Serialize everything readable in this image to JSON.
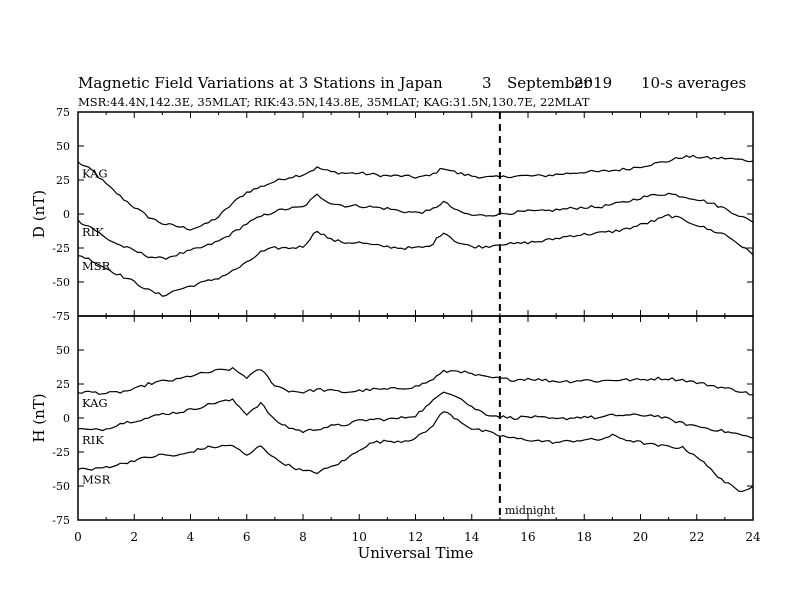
{
  "header": {
    "title": "Magnetic Field Variations at 3 Stations in Japan",
    "day": "3",
    "month": "September",
    "year": "2019",
    "averaging": "10-s averages",
    "stations_line": "MSR:44.4N,142.3E, 35MLAT;  RIK:43.5N,143.8E, 35MLAT;  KAG:31.5N,130.7E, 22MLAT"
  },
  "chart_data": [
    {
      "type": "line",
      "ylabel": "D (nT)",
      "xlim": [
        0,
        24
      ],
      "ylim": [
        -75,
        75
      ],
      "yticks": [
        "75",
        "50",
        "25",
        "0",
        "-25",
        "-50",
        "-75"
      ],
      "series": [
        {
          "name": "KAG",
          "x": [
            0,
            0.5,
            1,
            1.5,
            2,
            2.5,
            3,
            3.5,
            4,
            4.5,
            5,
            5.5,
            6,
            6.5,
            7,
            7.5,
            8,
            8.5,
            9,
            9.5,
            10,
            10.5,
            11,
            11.5,
            12,
            12.5,
            13,
            13.5,
            14,
            14.5,
            15,
            15.5,
            16,
            16.5,
            17,
            17.5,
            18,
            18.5,
            19,
            19.5,
            20,
            20.5,
            21,
            21.5,
            22,
            22.5,
            23,
            23.5,
            24
          ],
          "values": [
            38,
            32,
            22,
            13,
            5,
            -2,
            -7,
            -9,
            -11,
            -8,
            -2,
            8,
            16,
            20,
            24,
            27,
            29,
            34,
            31,
            30,
            30,
            29,
            28,
            28,
            27,
            28,
            34,
            30,
            28,
            27,
            27,
            28,
            28,
            28,
            29,
            30,
            31,
            31,
            32,
            33,
            35,
            37,
            39,
            42,
            42,
            41,
            41,
            40,
            39
          ]
        },
        {
          "name": "RIK",
          "x": [
            0,
            0.5,
            1,
            1.5,
            2,
            2.5,
            3,
            3.5,
            4,
            4.5,
            5,
            5.5,
            6,
            6.5,
            7,
            7.5,
            8,
            8.5,
            9,
            9.5,
            10,
            10.5,
            11,
            11.5,
            12,
            12.5,
            13,
            13.5,
            14,
            14.5,
            15,
            15.5,
            16,
            16.5,
            17,
            17.5,
            18,
            18.5,
            19,
            19.5,
            20,
            20.5,
            21,
            21.5,
            22,
            22.5,
            23,
            23.5,
            24
          ],
          "values": [
            -5,
            -10,
            -18,
            -23,
            -27,
            -31,
            -33,
            -30,
            -27,
            -24,
            -20,
            -14,
            -7,
            -2,
            2,
            4,
            5,
            14,
            8,
            6,
            6,
            5,
            4,
            2,
            1,
            2,
            9,
            2,
            -1,
            -1,
            0,
            1,
            2,
            2,
            3,
            4,
            5,
            5,
            7,
            9,
            12,
            14,
            15,
            13,
            11,
            8,
            4,
            -1,
            -6
          ]
        },
        {
          "name": "MSR",
          "x": [
            0,
            0.5,
            1,
            1.5,
            2,
            2.5,
            3,
            3.5,
            4,
            4.5,
            5,
            5.5,
            6,
            6.5,
            7,
            7.5,
            8,
            8.5,
            9,
            9.5,
            10,
            10.5,
            11,
            11.5,
            12,
            12.5,
            13,
            13.5,
            14,
            14.5,
            15,
            15.5,
            16,
            16.5,
            17,
            17.5,
            18,
            18.5,
            19,
            19.5,
            20,
            20.5,
            21,
            21.5,
            22,
            22.5,
            23,
            23.5,
            24
          ],
          "values": [
            -30,
            -34,
            -40,
            -45,
            -50,
            -56,
            -60,
            -56,
            -53,
            -50,
            -47,
            -42,
            -36,
            -28,
            -25,
            -25,
            -24,
            -12,
            -19,
            -21,
            -21,
            -23,
            -24,
            -25,
            -25,
            -24,
            -13,
            -21,
            -24,
            -24,
            -22,
            -22,
            -21,
            -20,
            -18,
            -16,
            -15,
            -14,
            -13,
            -11,
            -8,
            -5,
            -1,
            -4,
            -8,
            -12,
            -15,
            -22,
            -30
          ]
        }
      ]
    },
    {
      "type": "line",
      "ylabel": "H (nT)",
      "xlabel": "Universal Time",
      "xlim": [
        0,
        24
      ],
      "ylim": [
        -75,
        75
      ],
      "xticks": [
        "0",
        "2",
        "4",
        "6",
        "8",
        "10",
        "12",
        "14",
        "16",
        "18",
        "20",
        "22",
        "24"
      ],
      "yticks": [
        "50",
        "25",
        "0",
        "-25",
        "-50",
        "-75"
      ],
      "series": [
        {
          "name": "KAG",
          "x": [
            0,
            0.5,
            1,
            1.5,
            2,
            2.5,
            3,
            3.5,
            4,
            4.5,
            5,
            5.5,
            6,
            6.5,
            7,
            7.5,
            8,
            8.5,
            9,
            9.5,
            10,
            10.5,
            11,
            11.5,
            12,
            12.5,
            13,
            13.5,
            14,
            14.5,
            15,
            15.5,
            16,
            16.5,
            17,
            17.5,
            18,
            18.5,
            19,
            19.5,
            20,
            20.5,
            21,
            21.5,
            22,
            22.5,
            23,
            23.5,
            24
          ],
          "values": [
            19,
            19,
            18,
            19,
            21,
            25,
            27,
            28,
            31,
            33,
            35,
            36,
            30,
            36,
            24,
            20,
            19,
            21,
            20,
            19,
            20,
            21,
            21,
            22,
            23,
            27,
            34,
            35,
            32,
            30,
            29,
            28,
            29,
            28,
            27,
            27,
            28,
            27,
            28,
            28,
            28,
            29,
            29,
            28,
            26,
            24,
            22,
            20,
            17
          ]
        },
        {
          "name": "RIK",
          "x": [
            0,
            0.5,
            1,
            1.5,
            2,
            2.5,
            3,
            3.5,
            4,
            4.5,
            5,
            5.5,
            6,
            6.5,
            7,
            7.5,
            8,
            8.5,
            9,
            9.5,
            10,
            10.5,
            11,
            11.5,
            12,
            12.5,
            13,
            13.5,
            14,
            14.5,
            15,
            15.5,
            16,
            16.5,
            17,
            17.5,
            18,
            18.5,
            19,
            19.5,
            20,
            20.5,
            21,
            21.5,
            22,
            22.5,
            23,
            23.5,
            24
          ],
          "values": [
            -8,
            -9,
            -8,
            -4,
            -2,
            0,
            3,
            4,
            6,
            9,
            12,
            13,
            3,
            11,
            -2,
            -7,
            -10,
            -8,
            -6,
            -5,
            -2,
            -1,
            -1,
            0,
            2,
            10,
            20,
            16,
            8,
            3,
            1,
            0,
            1,
            0,
            -1,
            0,
            1,
            0,
            2,
            2,
            2,
            2,
            -1,
            -4,
            -6,
            -8,
            -10,
            -12,
            -15
          ]
        },
        {
          "name": "MSR",
          "x": [
            0,
            0.5,
            1,
            1.5,
            2,
            2.5,
            3,
            3.5,
            4,
            4.5,
            5,
            5.5,
            6,
            6.5,
            7,
            7.5,
            8,
            8.5,
            9,
            9.5,
            10,
            10.5,
            11,
            11.5,
            12,
            12.5,
            13,
            13.5,
            14,
            14.5,
            15,
            15.5,
            16,
            16.5,
            17,
            17.5,
            18,
            18.5,
            19,
            19.5,
            20,
            20.5,
            21,
            21.5,
            22,
            22.5,
            23,
            23.5,
            24
          ],
          "values": [
            -37,
            -38,
            -36,
            -34,
            -31,
            -29,
            -27,
            -28,
            -25,
            -22,
            -21,
            -20,
            -28,
            -20,
            -30,
            -35,
            -39,
            -40,
            -36,
            -31,
            -23,
            -18,
            -17,
            -17,
            -15,
            -8,
            5,
            -1,
            -8,
            -10,
            -13,
            -15,
            -16,
            -17,
            -18,
            -17,
            -16,
            -16,
            -13,
            -16,
            -18,
            -20,
            -21,
            -22,
            -28,
            -38,
            -47,
            -54,
            -50
          ]
        }
      ]
    }
  ],
  "annotations": {
    "midnight_label": "midnight",
    "midnight_x": 15
  }
}
